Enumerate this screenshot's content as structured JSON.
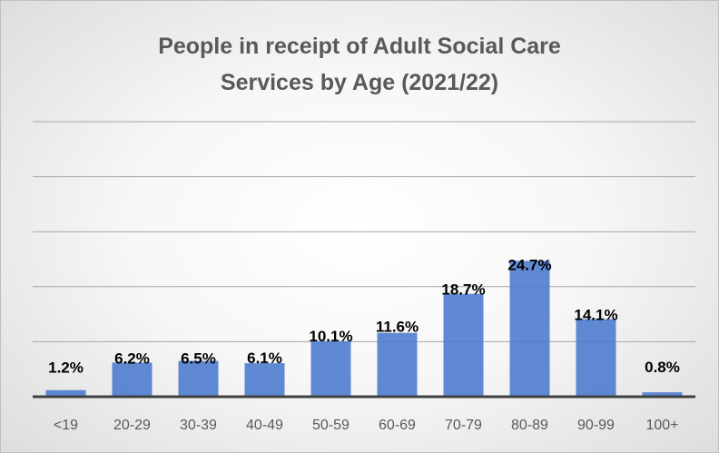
{
  "chart_data": {
    "type": "bar",
    "title_lines": [
      "People in receipt of Adult Social Care",
      "Services by Age (2021/22)"
    ],
    "categories": [
      "<19",
      "20-29",
      "30-39",
      "40-49",
      "50-59",
      "60-69",
      "70-79",
      "80-89",
      "90-99",
      "100+"
    ],
    "values": [
      1.2,
      6.2,
      6.5,
      6.1,
      10.1,
      11.6,
      18.7,
      24.7,
      14.1,
      0.8
    ],
    "data_labels": [
      "1.2%",
      "6.2%",
      "6.5%",
      "6.1%",
      "10.1%",
      "11.6%",
      "18.7%",
      "24.7%",
      "14.1%",
      "0.8%"
    ],
    "ylim": [
      0,
      50
    ],
    "grid": true,
    "colors": {
      "bar": "#4f7ccf",
      "title": "#595959",
      "axis": "#404040",
      "grid": "#a6a6a6"
    }
  }
}
